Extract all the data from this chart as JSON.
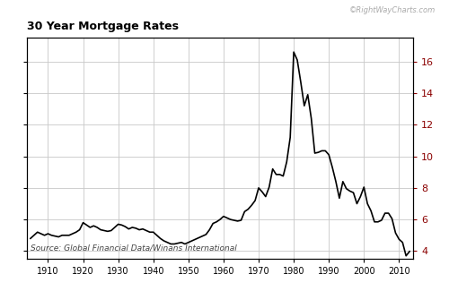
{
  "title": "30 Year Mortgage Rates",
  "watermark": "©RightWayCharts.com",
  "source_text": "Source: Global Financial Data/Winans International",
  "line_color": "#000000",
  "line_width": 1.2,
  "background_color": "#ffffff",
  "grid_color": "#c8c8c8",
  "right_axis_color": "#8b0000",
  "xlim": [
    1904,
    2014
  ],
  "ylim": [
    3.5,
    17.5
  ],
  "yticks": [
    4,
    6,
    8,
    10,
    12,
    14,
    16
  ],
  "xticks": [
    1910,
    1920,
    1930,
    1940,
    1950,
    1960,
    1970,
    1980,
    1990,
    2000,
    2010
  ],
  "years": [
    1905,
    1906,
    1907,
    1908,
    1909,
    1910,
    1911,
    1912,
    1913,
    1914,
    1915,
    1916,
    1917,
    1918,
    1919,
    1920,
    1921,
    1922,
    1923,
    1924,
    1925,
    1926,
    1927,
    1928,
    1929,
    1930,
    1931,
    1932,
    1933,
    1934,
    1935,
    1936,
    1937,
    1938,
    1939,
    1940,
    1941,
    1942,
    1943,
    1944,
    1945,
    1946,
    1947,
    1948,
    1949,
    1950,
    1951,
    1952,
    1953,
    1954,
    1955,
    1956,
    1957,
    1958,
    1959,
    1960,
    1961,
    1962,
    1963,
    1964,
    1965,
    1966,
    1967,
    1968,
    1969,
    1970,
    1971,
    1972,
    1973,
    1974,
    1975,
    1976,
    1977,
    1978,
    1979,
    1980,
    1981,
    1982,
    1983,
    1984,
    1985,
    1986,
    1987,
    1988,
    1989,
    1990,
    1991,
    1992,
    1993,
    1994,
    1995,
    1996,
    1997,
    1998,
    1999,
    2000,
    2001,
    2002,
    2003,
    2004,
    2005,
    2006,
    2007,
    2008,
    2009,
    2010,
    2011,
    2012,
    2013
  ],
  "rates": [
    4.8,
    5.0,
    5.2,
    5.1,
    5.0,
    5.1,
    5.0,
    4.95,
    4.9,
    5.0,
    5.0,
    5.0,
    5.1,
    5.2,
    5.35,
    5.8,
    5.65,
    5.5,
    5.6,
    5.5,
    5.35,
    5.3,
    5.25,
    5.3,
    5.5,
    5.7,
    5.65,
    5.55,
    5.4,
    5.5,
    5.45,
    5.35,
    5.4,
    5.3,
    5.2,
    5.2,
    5.0,
    4.8,
    4.65,
    4.55,
    4.45,
    4.45,
    4.5,
    4.55,
    4.45,
    4.55,
    4.65,
    4.75,
    4.85,
    4.95,
    5.05,
    5.35,
    5.75,
    5.85,
    6.0,
    6.2,
    6.1,
    6.0,
    5.95,
    5.9,
    5.95,
    6.5,
    6.65,
    6.9,
    7.2,
    8.0,
    7.75,
    7.45,
    8.05,
    9.2,
    8.85,
    8.85,
    8.75,
    9.65,
    11.2,
    16.6,
    16.1,
    14.7,
    13.2,
    13.9,
    12.4,
    10.2,
    10.25,
    10.35,
    10.35,
    10.1,
    9.3,
    8.4,
    7.35,
    8.4,
    7.95,
    7.8,
    7.7,
    7.0,
    7.45,
    8.05,
    7.0,
    6.55,
    5.85,
    5.85,
    5.95,
    6.4,
    6.4,
    6.05,
    5.15,
    4.75,
    4.55,
    3.7,
    3.98
  ]
}
